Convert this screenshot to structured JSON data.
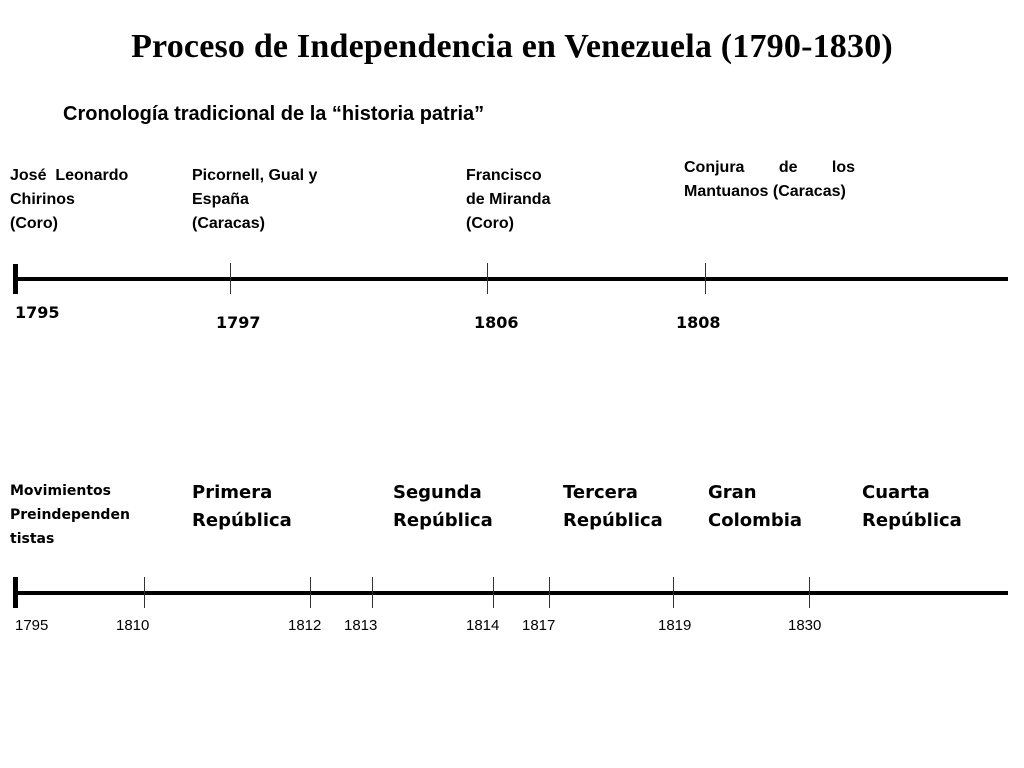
{
  "title": "Proceso de Independencia en Venezuela (1790-1830)",
  "subtitle": "Cronología tradicional de la “historia patria”",
  "timeline1": {
    "events": [
      "José  Leonardo\nChirinos\n(Coro)",
      "Picornell, Gual y\nEspaña\n(Caracas)",
      "Francisco\nde Miranda\n(Coro)",
      "Conjura de los Mantuanos (Caracas)"
    ],
    "years": [
      "1795",
      "1797",
      "1806",
      "1808"
    ]
  },
  "timeline2": {
    "periods": [
      "Movimientos\nPreindependen\ntistas",
      "Primera\nRepública",
      "Segunda\nRepública",
      "Tercera\nRepública",
      "Gran\nColombia",
      "Cuarta\nRepública"
    ],
    "years": [
      "1795",
      "1810",
      "1812",
      "1813",
      "1814",
      "1817",
      "1819",
      "1830"
    ]
  }
}
